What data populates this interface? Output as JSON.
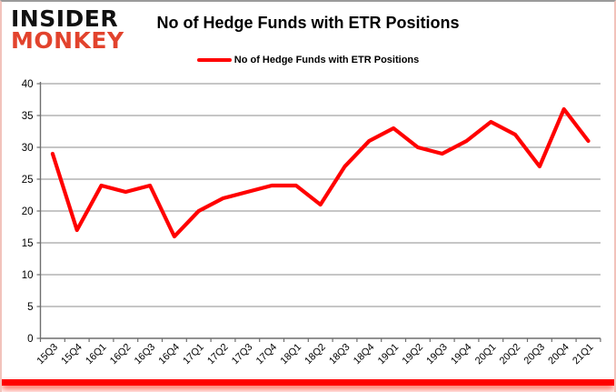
{
  "logo": {
    "line1": "INSIDER",
    "line2": "MONKEY"
  },
  "header": {
    "title": "No of Hedge Funds with ETR Positions"
  },
  "legend": {
    "label": "No of Hedge Funds with ETR Positions"
  },
  "colors": {
    "line": "#ff0000",
    "logo_accent": "#e2432d",
    "grid": "#8c8c8c",
    "axis": "#6e6e6e",
    "label_text": "#000000",
    "bottom_bar": "#ff0000",
    "top_border": "#9b9b9b"
  },
  "chart_data": {
    "type": "line",
    "title": "No of Hedge Funds with ETR Positions",
    "series": [
      {
        "name": "No of Hedge Funds with ETR Positions",
        "color": "#ff0000",
        "values": [
          29,
          17,
          24,
          23,
          24,
          16,
          20,
          22,
          23,
          24,
          24,
          21,
          27,
          31,
          33,
          30,
          29,
          31,
          34,
          32,
          27,
          36,
          31
        ]
      }
    ],
    "categories": [
      "15Q3",
      "15Q4",
      "16Q1",
      "16Q2",
      "16Q3",
      "16Q4",
      "17Q1",
      "17Q2",
      "17Q3",
      "17Q4",
      "18Q1",
      "18Q2",
      "18Q3",
      "18Q4",
      "19Q1",
      "19Q2",
      "19Q3",
      "19Q4",
      "20Q1",
      "20Q2",
      "20Q3",
      "20Q4",
      "21Q1"
    ],
    "xlabel": "",
    "ylabel": "",
    "ylim": [
      0,
      40
    ],
    "ytick_step": 5,
    "grid": true,
    "legend_position": "top-center",
    "x_label_rotation": 45
  }
}
